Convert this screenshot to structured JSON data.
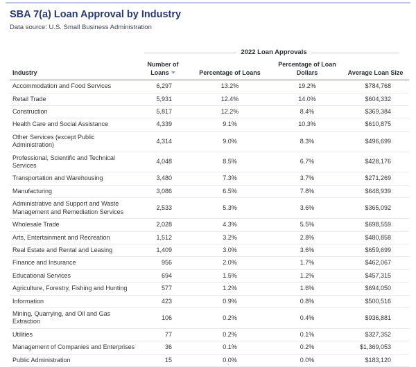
{
  "header": {
    "title": "SBA 7(a) Loan Approval by Industry",
    "subtitle": "Data source: U.S. Small Business Administration"
  },
  "table": {
    "group_header": "2022 Loan Approvals",
    "columns": [
      "Industry",
      "Number of Loans",
      "Percentage of Loans",
      "Percentage of Loan Dollars",
      "Average Loan Size"
    ],
    "rows": [
      [
        "Accommodation and Food Services",
        "6,297",
        "13.2%",
        "19.2%",
        "$784,768"
      ],
      [
        "Retail Trade",
        "5,931",
        "12.4%",
        "14.0%",
        "$604,332"
      ],
      [
        "Construction",
        "5,817",
        "12.2%",
        "8.4%",
        "$369,384"
      ],
      [
        "Health Care and Social Assistance",
        "4,339",
        "9.1%",
        "10.3%",
        "$610,875"
      ],
      [
        "Other Services (except Public Administration)",
        "4,314",
        "9.0%",
        "8.3%",
        "$496,699"
      ],
      [
        "Professional, Scientific and Technical Services",
        "4,048",
        "8.5%",
        "6.7%",
        "$428,176"
      ],
      [
        "Transportation and Warehousing",
        "3,480",
        "7.3%",
        "3.7%",
        "$271,269"
      ],
      [
        "Manufacturing",
        "3,086",
        "6.5%",
        "7.8%",
        "$648,939"
      ],
      [
        "Administrative and Support and Waste Management and Remediation Services",
        "2,533",
        "5.3%",
        "3.6%",
        "$365,092"
      ],
      [
        "Wholesale Trade",
        "2,028",
        "4.3%",
        "5.5%",
        "$698,559"
      ],
      [
        "Arts, Entertainment and Recreation",
        "1,512",
        "3.2%",
        "2.8%",
        "$480,858"
      ],
      [
        "Real Estate and Rental and Leasing",
        "1,409",
        "3.0%",
        "3.6%",
        "$659,699"
      ],
      [
        "Finance and Insurance",
        "956",
        "2.0%",
        "1.7%",
        "$462,067"
      ],
      [
        "Educational Services",
        "694",
        "1.5%",
        "1.2%",
        "$457,315"
      ],
      [
        "Agriculture, Forestry, Fishing and Hunting",
        "577",
        "1.2%",
        "1.6%",
        "$694,050"
      ],
      [
        "Information",
        "423",
        "0.9%",
        "0.8%",
        "$500,516"
      ],
      [
        "Mining, Quarrying, and Oil and Gas Extraction",
        "106",
        "0.2%",
        "0.4%",
        "$936,881"
      ],
      [
        "Utilities",
        "77",
        "0.2%",
        "0.1%",
        "$327,352"
      ],
      [
        "Management of Companies and Enterprises",
        "36",
        "0.1%",
        "0.2%",
        "$1,369,053"
      ],
      [
        "Public Administration",
        "15",
        "0.0%",
        "0.0%",
        "$183,120"
      ]
    ]
  }
}
